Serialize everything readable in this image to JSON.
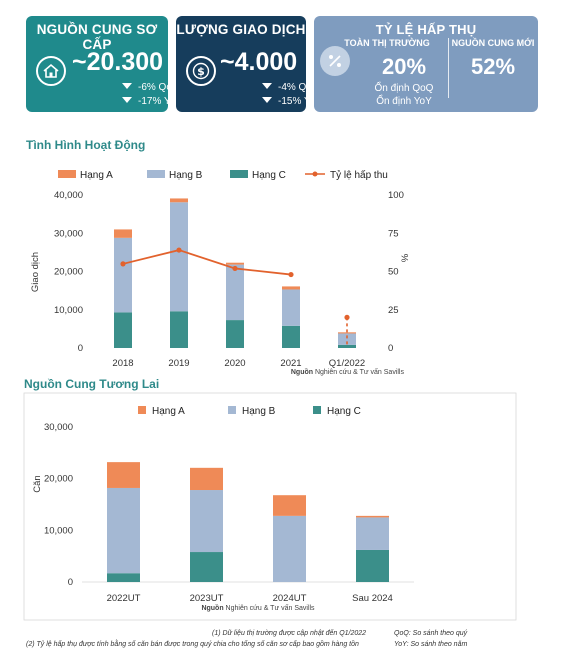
{
  "cards": {
    "supply": {
      "title": "NGUỒN CUNG SƠ CẤP",
      "value": "~20.300",
      "change1": "-6% QoQ",
      "change2": "-17% YoY",
      "icon": "house-icon",
      "color": "#1f8a8c"
    },
    "transactions": {
      "title": "LƯỢNG GIAO DỊCH",
      "value": "~4.000",
      "change1": "-4% QoQ",
      "change2": "-15% YoY",
      "icon": "dollar-coin-icon",
      "color": "#163d5c"
    },
    "absorption": {
      "title": "TỶ LỆ HẤP THỤ",
      "left_label": "TOÀN THỊ TRƯỜNG",
      "left_value": "20%",
      "left_note1": "Ổn định QoQ",
      "left_note2": "Ổn định YoY",
      "right_label": "NGUỒN CUNG MỚI",
      "right_value": "52%",
      "icon": "percent-icon",
      "color": "#7f9cbf"
    }
  },
  "sections": {
    "performance_title": "Tình Hình Hoạt Động",
    "future_title": "Nguồn Cung Tương Lai"
  },
  "chart_data": [
    {
      "type": "bar",
      "stacked": true,
      "categories": [
        "2018",
        "2019",
        "2020",
        "2021",
        "Q1/2022"
      ],
      "series": [
        {
          "name": "Hạng C",
          "color": "#3b8f8a",
          "values": [
            9300,
            9600,
            7300,
            5800,
            800
          ]
        },
        {
          "name": "Hạng B",
          "color": "#a4b8d3",
          "values": [
            19500,
            28500,
            14500,
            9500,
            3000
          ]
        },
        {
          "name": "Hạng A",
          "color": "#ef8a57",
          "values": [
            2200,
            1000,
            500,
            800,
            300
          ]
        }
      ],
      "line": {
        "name": "Tỷ lệ hấp thu",
        "color": "#e2622d",
        "values": [
          55,
          64,
          52,
          48,
          20
        ],
        "dashed_index": 4
      },
      "legend_order": [
        "Hạng A",
        "Hạng B",
        "Hạng C",
        "Tỷ lệ hấp thu"
      ],
      "ylabel": "Giao dịch",
      "ylabel_right": "%",
      "ylim": [
        0,
        40000
      ],
      "yticks": [
        "0",
        "10,000",
        "20,000",
        "30,000",
        "40,000"
      ],
      "ylim_right": [
        0,
        100
      ],
      "yticks_right": [
        "0",
        "25",
        "50",
        "75",
        "100"
      ],
      "source_label": "Nguồn",
      "source_text": "Nghiên cứu & Tư vấn Savills"
    },
    {
      "type": "bar",
      "stacked": true,
      "categories": [
        "2022UT",
        "2023UT",
        "2024UT",
        "Sau 2024"
      ],
      "series": [
        {
          "name": "Hạng C",
          "color": "#3b8f8a",
          "values": [
            1700,
            5800,
            0,
            6200
          ]
        },
        {
          "name": "Hạng B",
          "color": "#a4b8d3",
          "values": [
            16500,
            12000,
            12800,
            6300
          ]
        },
        {
          "name": "Hạng A",
          "color": "#ef8a57",
          "values": [
            5000,
            4300,
            4000,
            300
          ]
        }
      ],
      "legend_order": [
        "Hạng A",
        "Hạng B",
        "Hạng C"
      ],
      "ylabel": "Căn",
      "ylim": [
        0,
        30000
      ],
      "yticks": [
        "0",
        "10,000",
        "20,000",
        "30,000"
      ],
      "source_label": "Nguồn",
      "source_text": "Nghiên cứu & Tư vấn Savills"
    }
  ],
  "footnotes": {
    "note1": "(1) Dữ liệu thị trường được cập nhật đến Q1/2022",
    "note2": "(2) Tỷ lệ hấp thụ được tính bằng số căn bán được trong quý chia cho tổng số căn sơ cấp bao gồm hàng tồn",
    "qoq": "QoQ: So sánh theo quý",
    "yoy": "YoY: So sánh theo năm"
  }
}
